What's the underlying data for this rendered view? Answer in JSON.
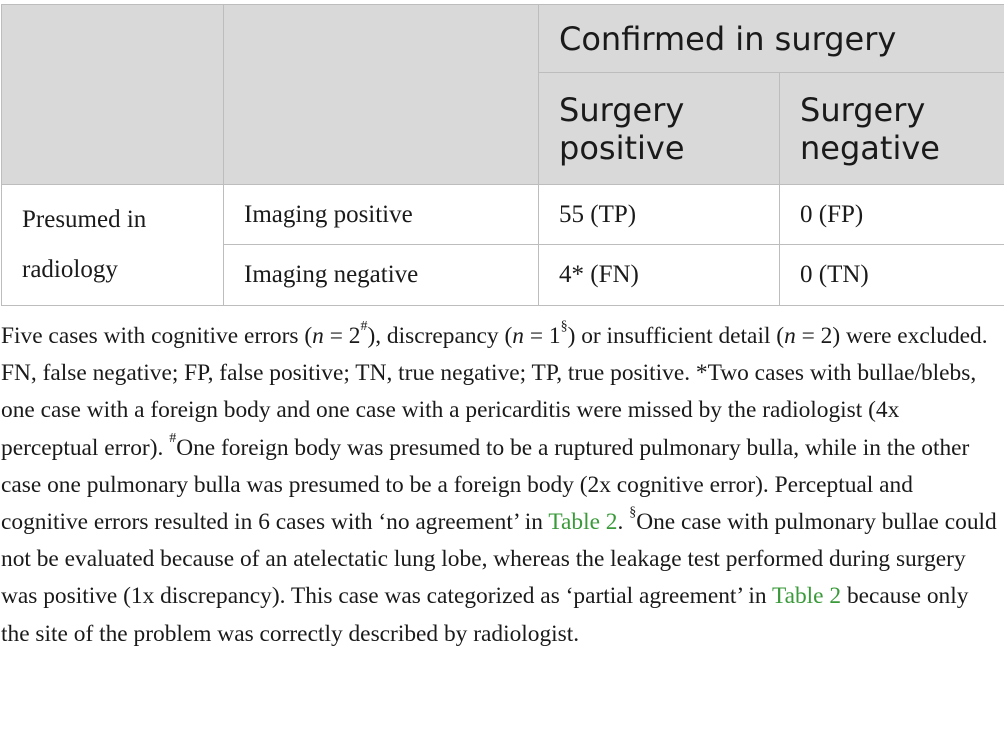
{
  "table": {
    "header": {
      "group_label": "Confirmed in surgery",
      "col_surgery_positive": "Surgery positive",
      "col_surgery_negative": "Surgery negative"
    },
    "row_group_label": "Presumed in radiology",
    "rows": [
      {
        "label": "Imaging positive",
        "surgery_positive": "55 (TP)",
        "surgery_negative": "0 (FP)"
      },
      {
        "label": "Imaging negative",
        "surgery_positive": "4* (FN)",
        "surgery_negative": "0 (TN)"
      }
    ]
  },
  "footnotes": {
    "fn1": {
      "t1": "Five cases with cognitive errors (",
      "n": "n",
      "eq2": " = 2",
      "sup_hash": "#",
      "t2": "), discrepancy (",
      "eq1": " = 1",
      "sup_section": "§",
      "t3": ") or insufficient detail (",
      "eq2b": " = 2) were excluded."
    },
    "fn2": {
      "t1": "FN, false negative; FP, false positive; TN, true negative; TP, true positive. *Two cases with bullae/blebs, one case with a foreign body and one case with a pericarditis were missed by the radiologist (4x perceptual error). ",
      "sup_hash": "#",
      "t2": "One foreign body was presumed to be a ruptured pulmonary bulla, while in the other case one pulmonary bulla was presumed to be a foreign body (2x cognitive error). Perceptual and cognitive errors resulted in 6 cases with ‘no agreement’ in ",
      "link1": "Table 2",
      "t3": ". ",
      "sup_section": "§",
      "t4": "One case with pulmonary bullae could not be evaluated because of an atelectatic lung lobe, whereas the leakage test performed during surgery was positive (1x discrepancy). This case was categorized as ‘partial agreement’ in ",
      "link2": "Table 2",
      "t5": " because only the site of the problem was correctly described by radiologist."
    }
  },
  "colors": {
    "header_bg": "#d9d9d9",
    "border": "#bdbdbd",
    "link": "#3a9a3a"
  }
}
